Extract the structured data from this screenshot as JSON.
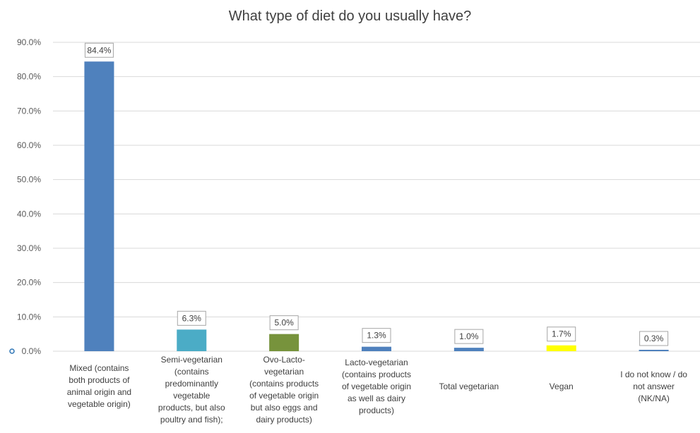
{
  "chart_data": {
    "type": "bar",
    "title": "What type of diet do you usually have?",
    "categories": [
      "Mixed (contains both products of animal origin and vegetable origin)",
      "Semi-vegetarian (contains predominantly vegetable products, but also poultry and fish);",
      "Ovo-Lacto-vegetarian (contains products of vegetable origin but also eggs and dairy products)",
      "Lacto-vegetarian (contains products of vegetable origin as well as dairy products)",
      "Total vegetarian",
      "Vegan",
      "I do not know / do not answer (NK/NA)"
    ],
    "category_lines": [
      [
        "Mixed (contains",
        "both products of",
        "animal origin and",
        "vegetable origin)"
      ],
      [
        "Semi-vegetarian",
        "(contains",
        "predominantly",
        "vegetable",
        "products, but also",
        "poultry and fish);"
      ],
      [
        "Ovo-Lacto-",
        "vegetarian",
        "(contains products",
        "of vegetable origin",
        "but also eggs and",
        "dairy products)"
      ],
      [
        "Lacto-vegetarian",
        "(contains products",
        "of vegetable origin",
        "as well as dairy",
        "products)"
      ],
      [
        "Total vegetarian"
      ],
      [
        "Vegan"
      ],
      [
        "I do not know / do",
        "not answer",
        "(NK/NA)"
      ]
    ],
    "values": [
      84.4,
      6.3,
      5.0,
      1.3,
      1.0,
      1.7,
      0.3
    ],
    "data_labels": [
      "84.4%",
      "6.3%",
      "5.0%",
      "1.3%",
      "1.0%",
      "1.7%",
      "0.3%"
    ],
    "colors": [
      "#4f81bd",
      "#4bacc6",
      "#77933c",
      "#4f81bd",
      "#4f81bd",
      "#ffff00",
      "#4f81bd"
    ],
    "ylim": [
      0,
      90
    ],
    "yticks": [
      "0.0%",
      "10.0%",
      "20.0%",
      "30.0%",
      "40.0%",
      "50.0%",
      "60.0%",
      "70.0%",
      "80.0%",
      "90.0%"
    ],
    "grid": true,
    "xlabel": "",
    "ylabel": ""
  }
}
